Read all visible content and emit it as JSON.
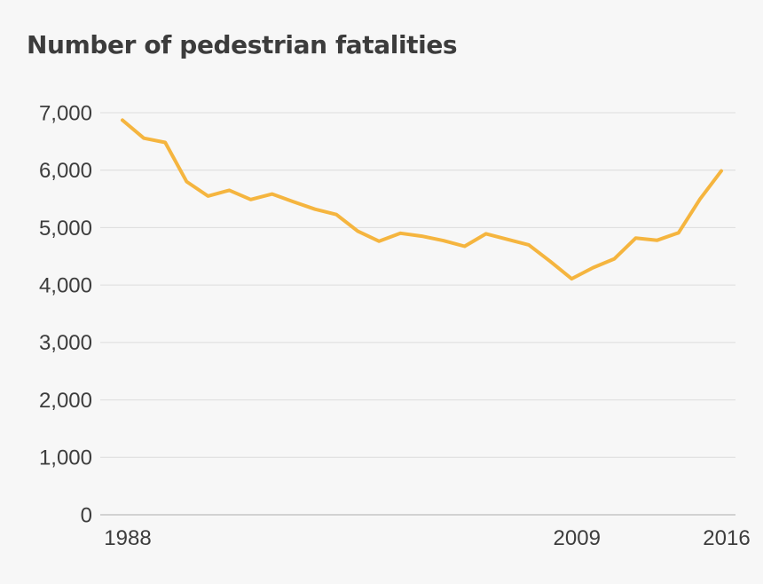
{
  "title": "Number of pedestrian fatalities",
  "colors": {
    "line": "#f5b53f",
    "background": "#f7f7f7",
    "text": "#3c3c3c",
    "grid": "#dcdcdc"
  },
  "chart_data": {
    "type": "line",
    "title": "Number of pedestrian fatalities",
    "xlabel": "",
    "ylabel": "",
    "xlim": [
      1988,
      2016
    ],
    "ylim": [
      0,
      7000
    ],
    "grid": true,
    "y_ticks": [
      {
        "value": 0,
        "label": "0"
      },
      {
        "value": 1000,
        "label": "1,000"
      },
      {
        "value": 2000,
        "label": "2,000"
      },
      {
        "value": 3000,
        "label": "3,000"
      },
      {
        "value": 4000,
        "label": "4,000"
      },
      {
        "value": 5000,
        "label": "5,000"
      },
      {
        "value": 6000,
        "label": "6,000"
      },
      {
        "value": 7000,
        "label": "7,000"
      }
    ],
    "x_ticks": [
      {
        "value": 1988,
        "label": "1988"
      },
      {
        "value": 2009,
        "label": "2009"
      },
      {
        "value": 2016,
        "label": "2016"
      }
    ],
    "series": [
      {
        "name": "Pedestrian fatalities",
        "x": [
          1988,
          1989,
          1990,
          1991,
          1992,
          1993,
          1994,
          1995,
          1996,
          1997,
          1998,
          1999,
          2000,
          2001,
          2002,
          2003,
          2004,
          2005,
          2006,
          2007,
          2008,
          2009,
          2010,
          2011,
          2012,
          2013,
          2014,
          2015,
          2016
        ],
        "values": [
          6870,
          6556,
          6482,
          5801,
          5549,
          5649,
          5489,
          5584,
          5449,
          5321,
          5228,
          4939,
          4763,
          4901,
          4851,
          4774,
          4675,
          4892,
          4795,
          4699,
          4414,
          4109,
          4302,
          4457,
          4818,
          4779,
          4910,
          5495,
          5987
        ]
      }
    ]
  }
}
